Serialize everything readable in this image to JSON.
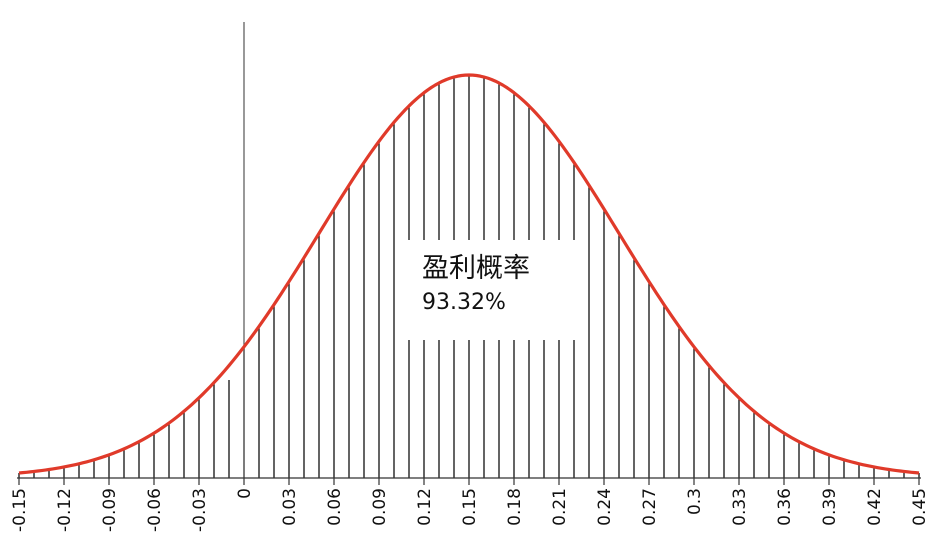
{
  "chart_data": {
    "type": "area",
    "distribution": "normal",
    "mean": 0.15,
    "std_dev": 0.1,
    "xlim": [
      -0.15,
      0.45
    ],
    "x_ticks": [
      "-0.15",
      "-0.12",
      "-0.09",
      "-0.06",
      "-0.03",
      "0",
      "0.03",
      "0.06",
      "0.09",
      "0.12",
      "0.15",
      "0.18",
      "0.21",
      "0.24",
      "0.27",
      "0.3",
      "0.33",
      "0.36",
      "0.39",
      "0.42",
      "0.45"
    ],
    "shaded_from": 0,
    "hatch": "vertical-lines",
    "curve_color": "#e03a2a",
    "annotation": {
      "title": "盈利概率",
      "value": "93.32%"
    },
    "title": "",
    "xlabel": "",
    "ylabel": ""
  }
}
